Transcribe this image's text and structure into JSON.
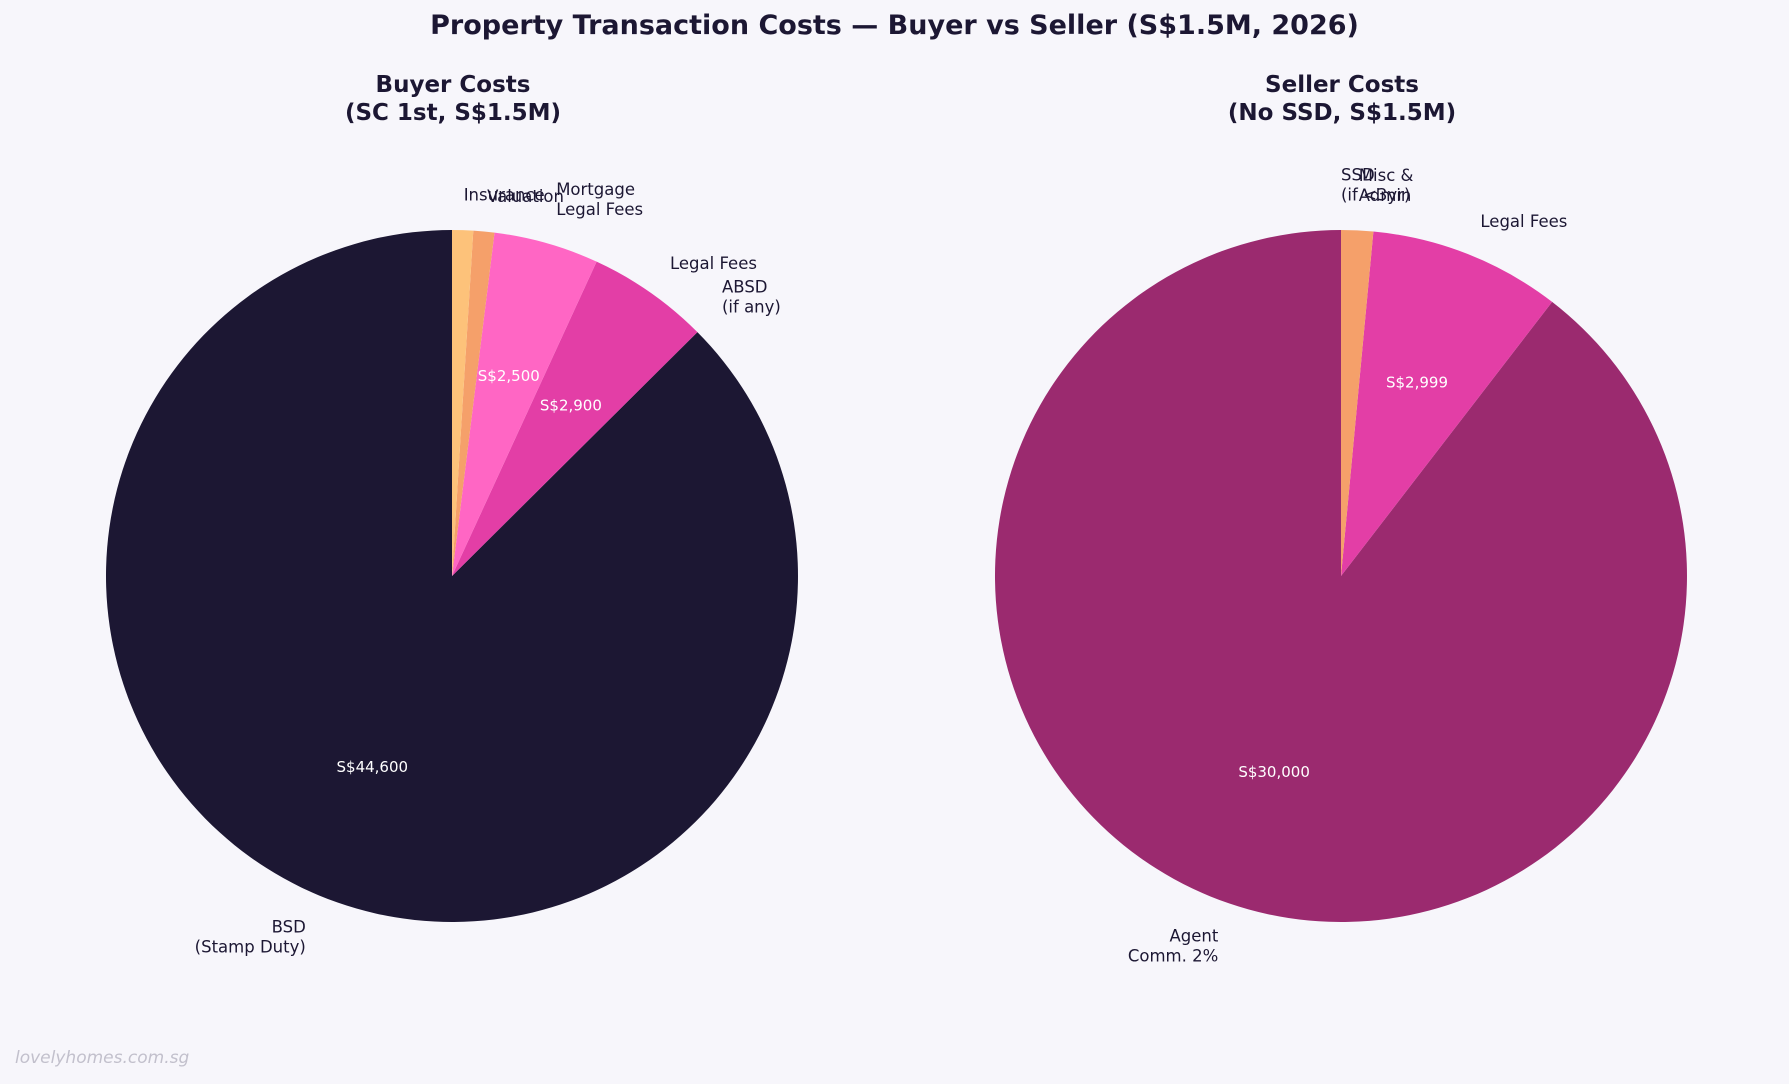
{
  "title": "Property Transaction Costs — Buyer vs Seller (S$1.5M, 2026)",
  "watermark": "lovelyhomes.com.sg",
  "chart_data": [
    {
      "type": "pie",
      "title_lines": [
        "Buyer Costs",
        "(SC 1st, S$1.5M)"
      ],
      "start_angle": 90,
      "direction": "counterclockwise",
      "slices": [
        {
          "label_lines": [
            "BSD",
            "(Stamp Duty)"
          ],
          "value": 44600,
          "value_label": "S$44,600",
          "color": "#1c1733"
        },
        {
          "label_lines": [
            "ABSD",
            "(if any)"
          ],
          "value": 0,
          "value_label": "",
          "color": "#9b2a6f"
        },
        {
          "label_lines": [
            "Legal Fees"
          ],
          "value": 2900,
          "value_label": "S$2,900",
          "color": "#e33ea6"
        },
        {
          "label_lines": [
            "Mortgage",
            "Legal Fees"
          ],
          "value": 2500,
          "value_label": "S$2,500",
          "color": "#ff66c4"
        },
        {
          "label_lines": [
            "Valuation"
          ],
          "value": 500,
          "value_label": "",
          "color": "#f5a06a"
        },
        {
          "label_lines": [
            "Insurance"
          ],
          "value": 500,
          "value_label": "",
          "color": "#fdc27a"
        }
      ]
    },
    {
      "type": "pie",
      "title_lines": [
        "Seller Costs",
        "(No SSD, S$1.5M)"
      ],
      "start_angle": 90,
      "direction": "counterclockwise",
      "slices": [
        {
          "label_lines": [
            "Agent",
            "Comm. 2%"
          ],
          "value": 30000,
          "value_label": "S$30,000",
          "color": "#9b2a6f"
        },
        {
          "label_lines": [
            "Legal Fees"
          ],
          "value": 2999,
          "value_label": "S$2,999",
          "color": "#e33ea6"
        },
        {
          "label_lines": [
            "Misc &",
            "Admin"
          ],
          "value": 500,
          "value_label": "",
          "color": "#f5a06a"
        },
        {
          "label_lines": [
            "SSD",
            "(if <3yr)"
          ],
          "value": 0,
          "value_label": "",
          "color": "#fdc27a"
        }
      ]
    }
  ]
}
